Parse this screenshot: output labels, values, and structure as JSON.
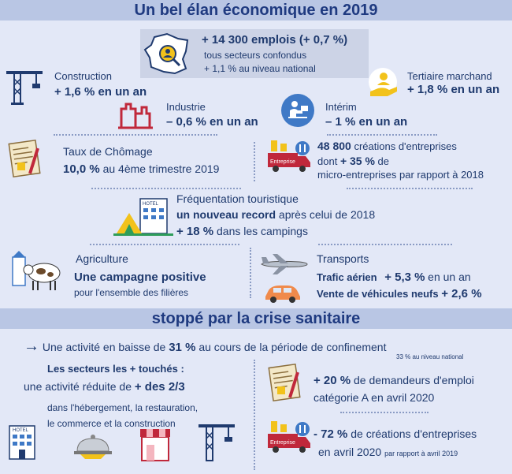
{
  "title": "Un bel élan économique en 2019",
  "emplois": {
    "main": "+ 14 300 emplois (+ 0,7 %)",
    "sub1": "tous secteurs confondus",
    "sub2": "+ 1,1 % au niveau national"
  },
  "construction": {
    "label": "Construction",
    "value": "+ 1,6 % en un an"
  },
  "industrie": {
    "label": "Industrie",
    "value": "– 0,6 % en un an"
  },
  "interim": {
    "label": "Intérim",
    "value": "– 1 % en un an"
  },
  "tertiaire": {
    "label": "Tertiaire marchand",
    "value": "+ 1,8 % en un an"
  },
  "chomage": {
    "label": "Taux de Chômage",
    "value_bold": "10,0 %",
    "value_rest": "au 4ème trimestre 2019"
  },
  "creations": {
    "line1_bold": "48 800",
    "line1_rest": "créations d'entreprises",
    "line2_pre": "dont",
    "line2_bold": "+ 35 %",
    "line2_rest": "de",
    "line3": "micro-entreprises par rapport à 2018",
    "truck_label": "Entreprise"
  },
  "tourisme": {
    "label": "Fréquentation touristique",
    "line2_bold": "un nouveau record",
    "line2_rest": "après celui de 2018",
    "line3_bold": "+ 18 %",
    "line3_rest": "dans les campings",
    "hotel_sign": "HOTEL"
  },
  "agriculture": {
    "label": "Agriculture",
    "line2": "Une campagne positive",
    "line3": "pour l'ensemble des filières"
  },
  "transports": {
    "label": "Transports",
    "aerien_label": "Trafic aérien",
    "aerien_value": "+ 5,3 %",
    "aerien_rest": "en un an",
    "vehicules_label": "Vente de véhicules neufs",
    "vehicules_value": "+ 2,6 %"
  },
  "subtitle": "stoppé par la crise sanitaire",
  "baisse": {
    "arrow": "→",
    "pre": "Une activité en baisse de",
    "bold": "31 %",
    "post": "au cours de la période de confinement",
    "note": "33 % au niveau national"
  },
  "secteurs": {
    "title": "Les secteurs les + touchés :",
    "line1_pre": "une activité réduite de",
    "line1_bold": "+ des 2/3",
    "line2": "dans l'hébergement, la restauration,",
    "line3": "le commerce et la construction",
    "hotel_sign": "HOTEL"
  },
  "demandeurs": {
    "bold": "+ 20 %",
    "rest": "de demandeurs d'emploi",
    "line2": "catégorie A en avril 2020"
  },
  "creations2020": {
    "bold": "- 72 %",
    "rest": "de créations d'entreprises",
    "line2": "en avril 2020",
    "note": "par rapport à avril 2019",
    "truck_label": "Entreprise"
  },
  "colors": {
    "accent": "#1f3a80",
    "band": "#b9c6e4",
    "background": "#e3e8f7",
    "red": "#c0283b",
    "yellow": "#f2c21b"
  }
}
